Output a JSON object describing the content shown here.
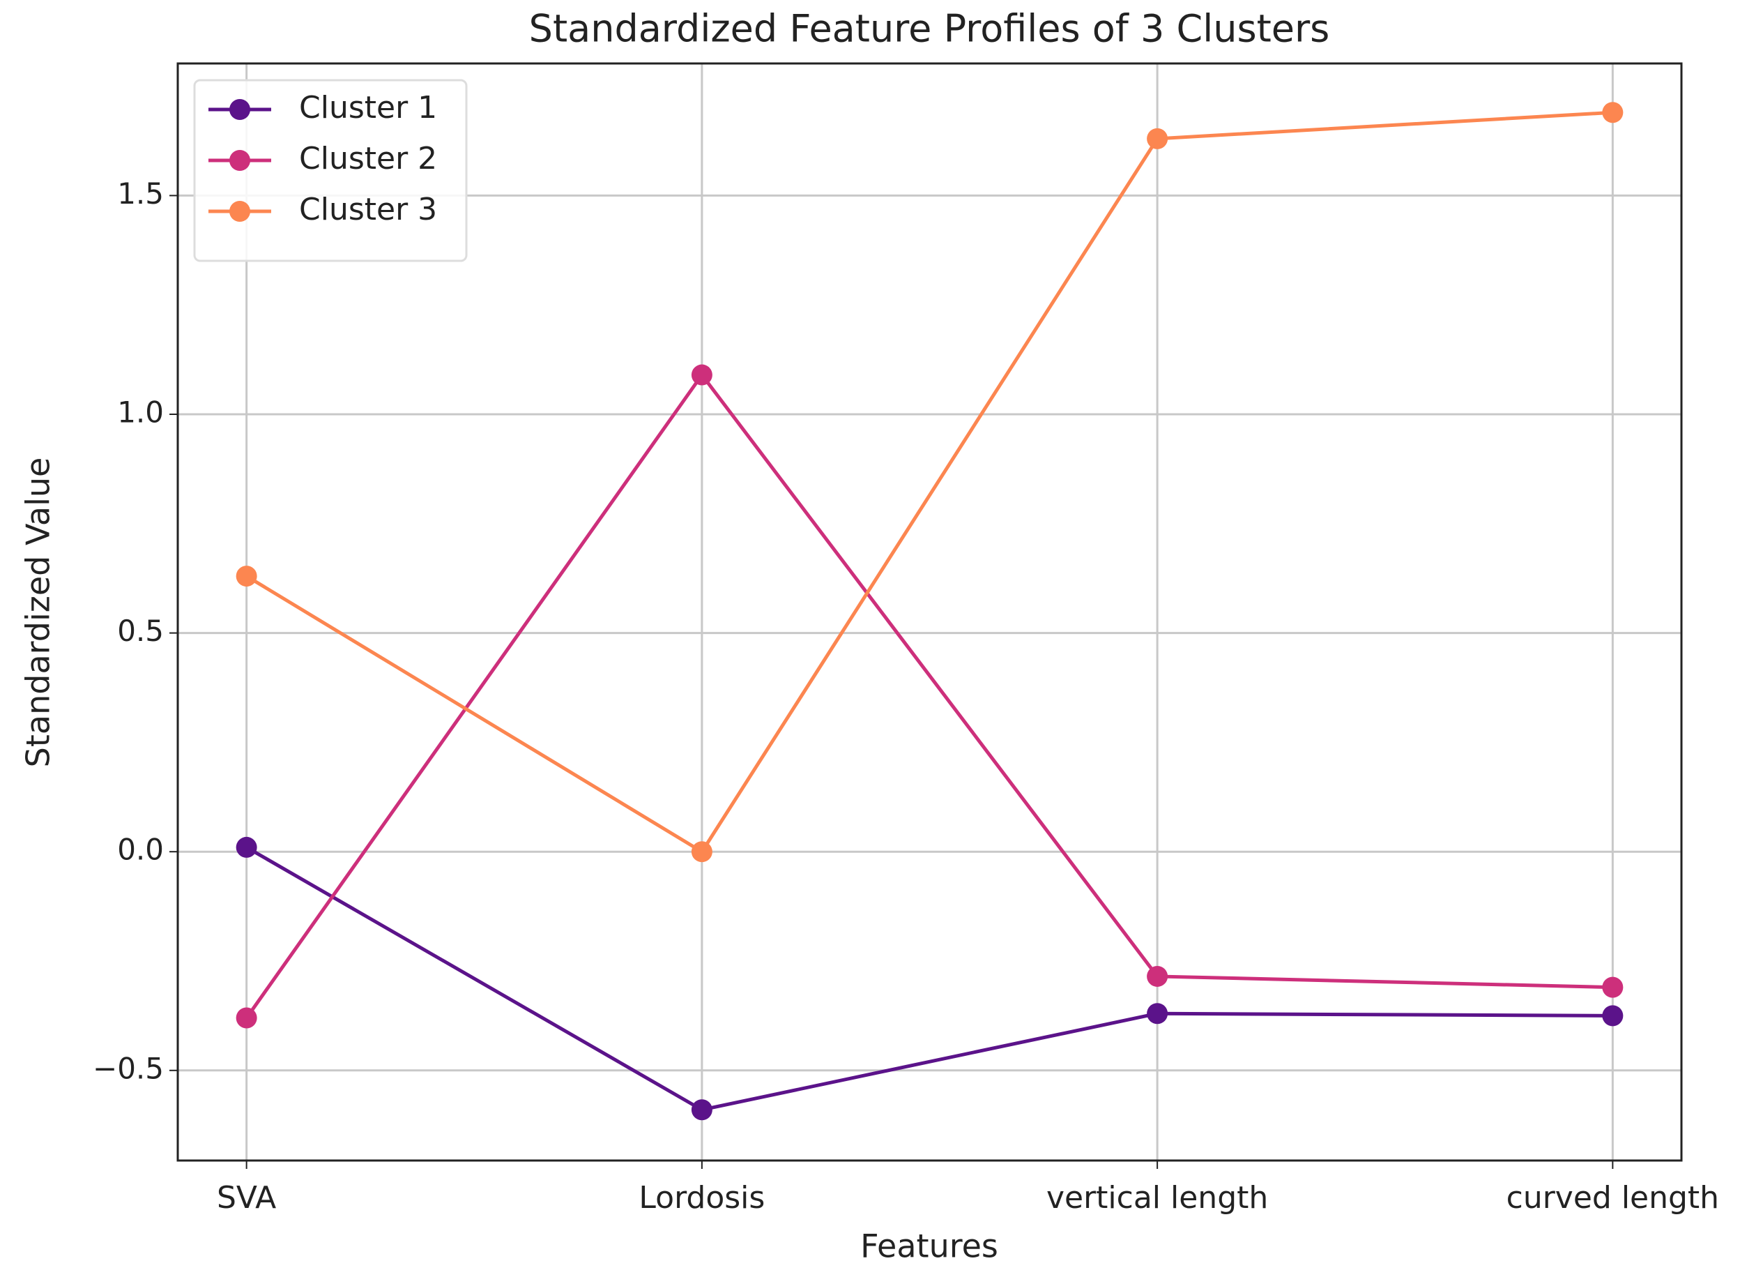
{
  "chart_data": {
    "type": "line",
    "title": "Standardized Feature Profiles of 3 Clusters",
    "x_label": "Features",
    "y_label": "Standardized Value",
    "categories": [
      "SVA",
      "Lordosis",
      "vertical length",
      "curved length"
    ],
    "series": [
      {
        "name": "Cluster 1",
        "color": "#5b138a",
        "values": [
          0.01,
          -0.59,
          -0.37,
          -0.375
        ]
      },
      {
        "name": "Cluster 2",
        "color": "#cd2f7b",
        "values": [
          -0.38,
          1.09,
          -0.285,
          -0.31
        ]
      },
      {
        "name": "Cluster 3",
        "color": "#fc8650",
        "values": [
          0.63,
          0.0,
          1.63,
          1.69
        ]
      }
    ],
    "ylim": [
      -0.706,
      1.802
    ],
    "yticks": [
      {
        "value": -0.5,
        "label": "−0.5"
      },
      {
        "value": 0,
        "label": "0.0"
      },
      {
        "value": 0.5,
        "label": "0.5"
      },
      {
        "value": 1,
        "label": "1.0"
      },
      {
        "value": 1.5,
        "label": "1.5"
      }
    ],
    "grid": true,
    "legend": "upper left"
  }
}
